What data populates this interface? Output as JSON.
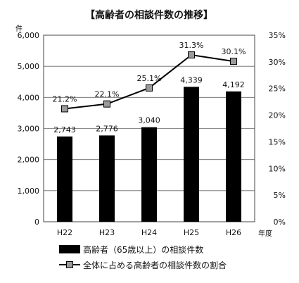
{
  "chart_data": {
    "type": "bar",
    "title": "【高齢者の相談件数の推移】",
    "categories": [
      "H22",
      "H23",
      "H24",
      "H25",
      "H26"
    ],
    "series": [
      {
        "name": "高齢者（65歳以上）の相談件数",
        "type": "bar",
        "axis": "left",
        "values": [
          2743,
          2776,
          3040,
          4339,
          4192
        ],
        "labels": [
          "2,743",
          "2,776",
          "3,040",
          "4,339",
          "4,192"
        ],
        "color": "#000000"
      },
      {
        "name": "全体に占める高齢者の相談件数の割合",
        "type": "line",
        "axis": "right",
        "values": [
          21.2,
          22.1,
          25.1,
          31.3,
          30.1
        ],
        "labels": [
          "21.2%",
          "22.1%",
          "25.1%",
          "31.3%",
          "30.1%"
        ],
        "color": "#000000",
        "marker_color": "#9a9a9a"
      }
    ],
    "y_left": {
      "unit": "件",
      "ylim": [
        0,
        6000
      ],
      "ticks": [
        0,
        1000,
        2000,
        3000,
        4000,
        5000,
        6000
      ],
      "tick_labels": [
        "0",
        "1,000",
        "2,000",
        "3,000",
        "4,000",
        "5,000",
        "6,000"
      ]
    },
    "y_right": {
      "ylim": [
        0,
        35
      ],
      "ticks": [
        0,
        5,
        10,
        15,
        20,
        25,
        30,
        35
      ],
      "tick_labels": [
        "0%",
        "5%",
        "10%",
        "15%",
        "20%",
        "25%",
        "30%",
        "35%"
      ]
    },
    "x_unit": "年度",
    "grid": true,
    "legend": "bottom"
  }
}
